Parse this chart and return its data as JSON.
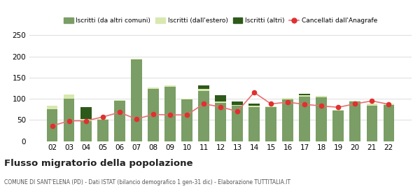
{
  "years": [
    "02",
    "03",
    "04",
    "05",
    "06",
    "07",
    "08",
    "09",
    "10",
    "11",
    "12",
    "13",
    "14",
    "15",
    "16",
    "17",
    "18",
    "19",
    "20",
    "21",
    "22"
  ],
  "iscritti_altri_comuni": [
    75,
    100,
    48,
    50,
    95,
    193,
    124,
    128,
    98,
    118,
    90,
    83,
    80,
    80,
    98,
    105,
    103,
    72,
    93,
    84,
    85
  ],
  "iscritti_estero": [
    8,
    10,
    5,
    2,
    2,
    2,
    3,
    3,
    3,
    5,
    3,
    3,
    3,
    2,
    4,
    4,
    4,
    2,
    2,
    4,
    3
  ],
  "iscritti_altri": [
    0,
    0,
    27,
    0,
    0,
    0,
    0,
    0,
    0,
    8,
    15,
    8,
    5,
    0,
    0,
    2,
    0,
    0,
    0,
    0,
    0
  ],
  "cancellati": [
    36,
    48,
    48,
    57,
    68,
    52,
    63,
    62,
    62,
    88,
    81,
    70,
    115,
    88,
    92,
    87,
    83,
    80,
    88,
    95,
    87
  ],
  "color_iscritti_comuni": "#7a9e65",
  "color_iscritti_estero": "#d9e8b0",
  "color_iscritti_altri": "#2d5a1b",
  "color_cancellati": "#e03030",
  "color_cancellati_line": "#e87070",
  "ylim": [
    0,
    250
  ],
  "yticks": [
    0,
    50,
    100,
    150,
    200,
    250
  ],
  "title": "Flusso migratorio della popolazione",
  "subtitle": "COMUNE DI SANT'ELENA (PD) - Dati ISTAT (bilancio demografico 1 gen-31 dic) - Elaborazione TUTTITALIA.IT",
  "legend_labels": [
    "Iscritti (da altri comuni)",
    "Iscritti (dall'estero)",
    "Iscritti (altri)",
    "Cancellati dall'Anagrafe"
  ],
  "background_color": "#ffffff",
  "grid_color": "#dddddd"
}
